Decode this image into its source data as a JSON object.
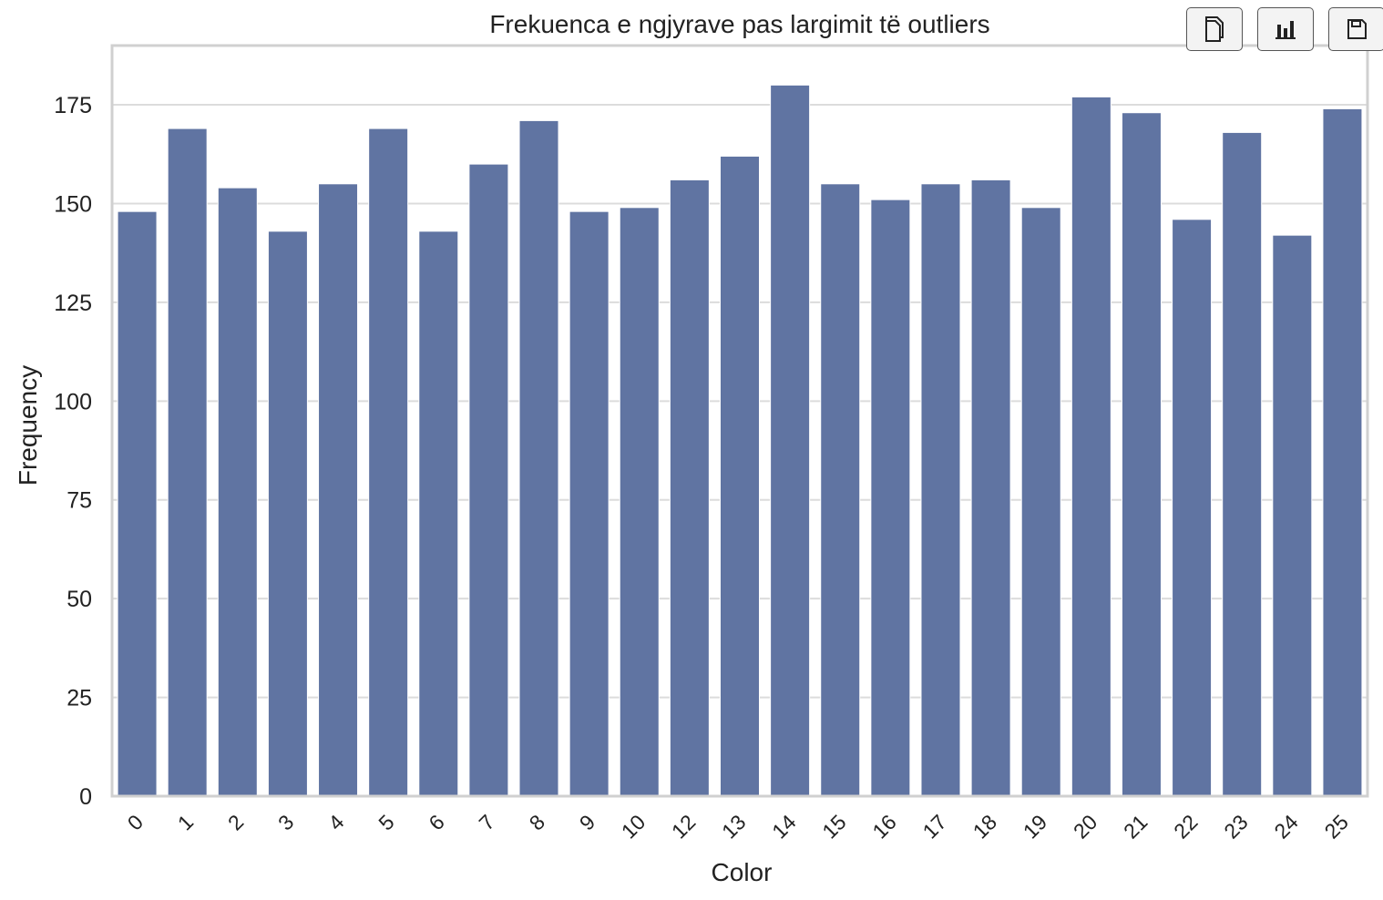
{
  "chart_data": {
    "type": "bar",
    "title": "Frekuenca e ngjyrave pas largimit të outliers",
    "xlabel": "Color",
    "ylabel": "Frequency",
    "categories": [
      "0",
      "1",
      "2",
      "3",
      "4",
      "5",
      "6",
      "7",
      "8",
      "9",
      "10",
      "12",
      "13",
      "14",
      "15",
      "16",
      "17",
      "18",
      "19",
      "20",
      "21",
      "22",
      "23",
      "24",
      "25"
    ],
    "values": [
      148,
      169,
      154,
      143,
      155,
      169,
      143,
      160,
      171,
      148,
      149,
      156,
      162,
      180,
      155,
      151,
      155,
      156,
      149,
      177,
      173,
      146,
      168,
      142,
      174
    ],
    "ylim": [
      0,
      190
    ],
    "yticks": [
      0,
      25,
      50,
      75,
      100,
      125,
      150,
      175
    ],
    "grid": "horizontal",
    "bar_color": "#6074a2",
    "frame_color": "#d0d0d0",
    "grid_color": "#dcdcdc"
  },
  "toolbar": {
    "buttons": [
      {
        "name": "copy-button",
        "icon": "copy-icon"
      },
      {
        "name": "chart-button",
        "icon": "bar-chart-icon"
      },
      {
        "name": "save-button",
        "icon": "save-icon"
      }
    ]
  }
}
